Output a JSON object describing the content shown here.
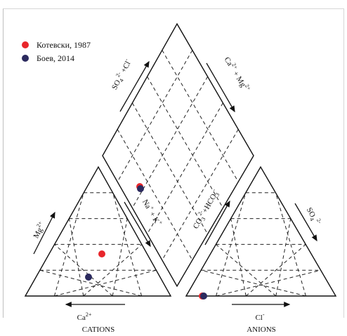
{
  "legend": {
    "items": [
      {
        "label": "Котевски, 1987",
        "color": "#e8262b"
      },
      {
        "label": "Боев, 2014",
        "color": "#2b2a5e"
      }
    ]
  },
  "labels": {
    "mg": "Mg",
    "mg_sup": "2+",
    "ca": "Ca",
    "ca_sup": "2+",
    "cations": "CATIONS",
    "cl": "Cl",
    "cl_sup": "-",
    "anions": "ANIONS",
    "so4_right": "SO",
    "so4_right_sub": "4",
    "so4_right_sup": "2-",
    "na_k": "Na",
    "na_k_sup": "+",
    "na_k_plus": " + K",
    "na_k_sup2": "+",
    "co3_hco3": "CO",
    "co3_sub": "3",
    "co3_sup": "2-",
    "co3_rest": "+HCO",
    "hco3_sub": "3",
    "hco3_sup": "-",
    "so4_cl": "SO",
    "so4_cl_sub": "4",
    "so4_cl_sup": "2-",
    "so4_cl_rest": " +Cl",
    "so4_cl_sup2": "-",
    "ca_mg": "Ca",
    "ca_mg_sup": "2+",
    "ca_mg_rest": " + Mg",
    "ca_mg_sup2": "2+"
  },
  "samples": {
    "kotevski_color": "#e8262b",
    "boev_color": "#2b2a5e"
  }
}
